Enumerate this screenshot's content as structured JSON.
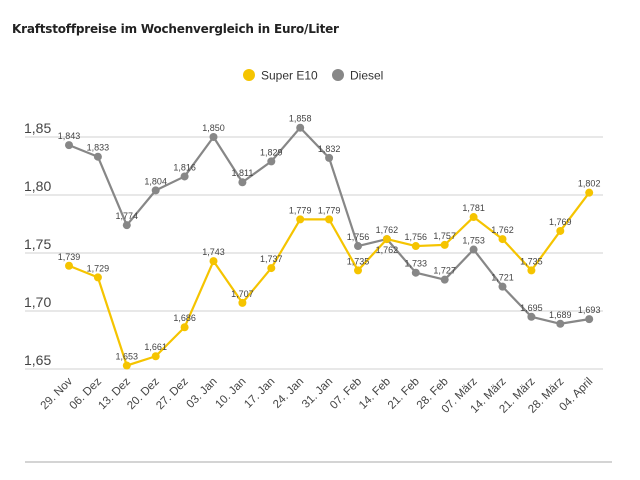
{
  "chart_data": {
    "type": "line",
    "title": "Kraftstoffpreise im Wochenvergleich in Euro/Liter",
    "xlabel": "",
    "ylabel": "",
    "categories": [
      "29. Nov",
      "06. Dez",
      "13. Dez",
      "20. Dez",
      "27. Dez",
      "03. Jan",
      "10. Jan",
      "17. Jan",
      "24. Jan",
      "31. Jan",
      "07. Feb",
      "14. Feb",
      "21. Feb",
      "28. Feb",
      "07. März",
      "14. März",
      "21. März",
      "28. März",
      "04. April"
    ],
    "yticks": [
      "1,65",
      "1,70",
      "1,75",
      "1,80",
      "1,85"
    ],
    "ylim": [
      1.65,
      1.85
    ],
    "grid": true,
    "legend_position": "top-center",
    "series": [
      {
        "name": "Super E10",
        "color": "#f5c400",
        "values": [
          1.739,
          1.729,
          1.653,
          1.661,
          1.686,
          1.743,
          1.707,
          1.737,
          1.779,
          1.779,
          1.735,
          1.762,
          1.756,
          1.757,
          1.781,
          1.762,
          1.735,
          1.769,
          1.802
        ]
      },
      {
        "name": "Diesel",
        "color": "#878787",
        "values": [
          1.843,
          1.833,
          1.774,
          1.804,
          1.816,
          1.85,
          1.811,
          1.829,
          1.858,
          1.832,
          1.756,
          1.762,
          1.733,
          1.727,
          1.753,
          1.721,
          1.695,
          1.689,
          1.693
        ]
      }
    ]
  }
}
